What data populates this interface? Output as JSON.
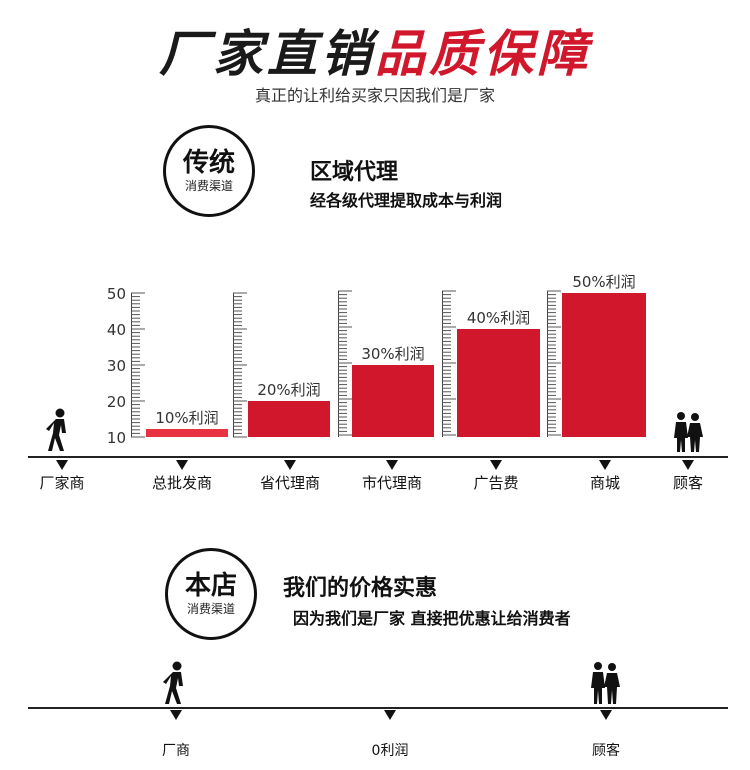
{
  "header": {
    "title_black": "厂家直销",
    "title_red": "品质保障",
    "subtitle": "真正的让利给买家只因我们是厂家"
  },
  "traditional": {
    "circle_main": "传统",
    "circle_sub": "消费渠道",
    "heading": "区域代理",
    "subheading": "经各级代理提取成本与利润"
  },
  "chart_data": {
    "type": "bar",
    "categories": [
      "总批发商",
      "省代理商",
      "市代理商",
      "广告费",
      "商城"
    ],
    "values": [
      10,
      20,
      30,
      40,
      50
    ],
    "data_labels": [
      "10%利润",
      "20%利润",
      "30%利润",
      "40%利润",
      "50%利润"
    ],
    "y_ticks": [
      "10",
      "20",
      "30",
      "40",
      "50"
    ],
    "ylim": [
      10,
      50
    ],
    "endpoints": [
      "厂家商",
      "顾客"
    ],
    "bar_color": "#d0172b",
    "first_bar_color": "#e8323f"
  },
  "store": {
    "circle_main": "本店",
    "circle_sub": "消费渠道",
    "heading": "我们的价格实惠",
    "subheading": "因为我们是厂家  直接把优惠让给消费者",
    "labels": [
      "厂商",
      "0利润",
      "顾客"
    ]
  },
  "icons": [
    "walker-icon",
    "couple-icon"
  ]
}
